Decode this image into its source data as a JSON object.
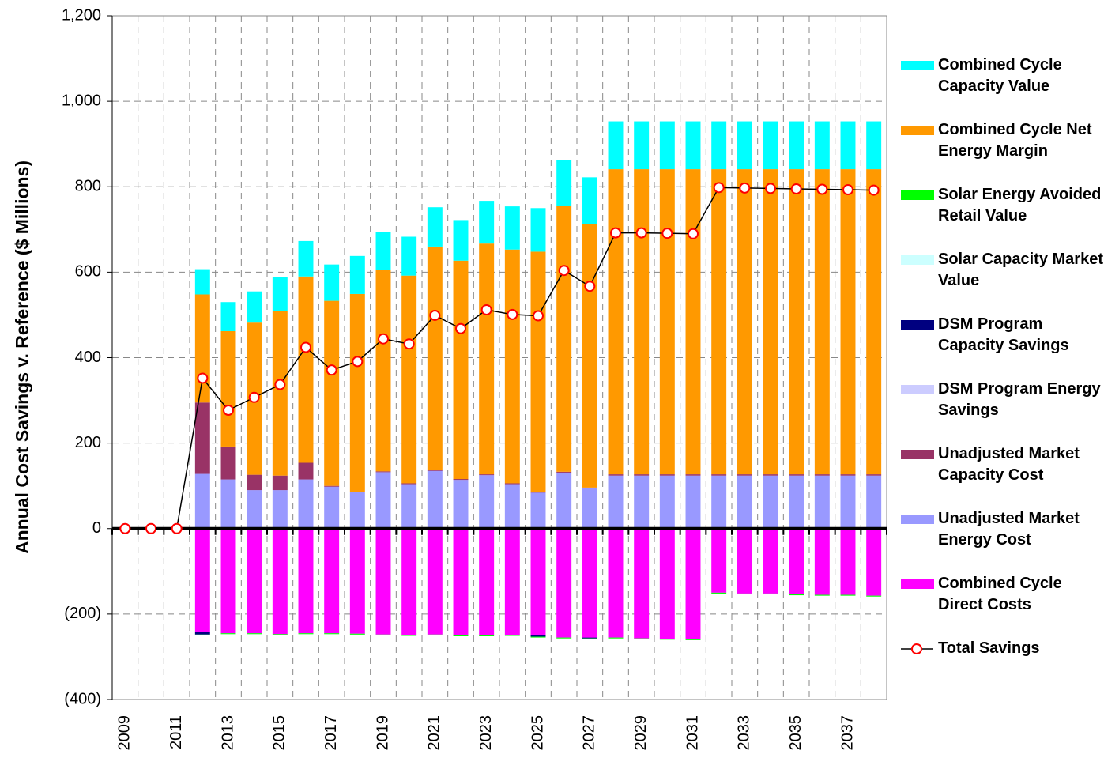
{
  "chart_data": {
    "type": "bar",
    "y_label": "Annual Cost Savings v. Reference ($ Millions)",
    "categories": [
      "2009",
      null,
      "2011",
      null,
      "2013",
      null,
      "2015",
      null,
      "2017",
      null,
      "2019",
      null,
      "2021",
      null,
      "2023",
      null,
      "2025",
      null,
      "2027",
      null,
      "2029",
      null,
      "2031",
      null,
      "2033",
      null,
      "2035",
      null,
      "2037",
      null
    ],
    "ylim": [
      -400,
      1200
    ],
    "yticks": [
      {
        "value": -400,
        "label": "(400)"
      },
      {
        "value": -200,
        "label": "(200)"
      },
      0,
      200,
      400,
      600,
      800,
      {
        "value": 1000,
        "label": "1,000"
      },
      {
        "value": 1200,
        "label": "1,200"
      }
    ],
    "grid": true,
    "legend": "right",
    "series": [
      {
        "name": "Combined Cycle Capacity Value",
        "color": "#00ffff",
        "values": [
          0,
          0,
          0,
          59,
          68,
          73,
          78,
          83,
          85,
          89,
          90,
          91,
          92,
          95,
          100,
          101,
          102,
          106,
          110,
          112,
          112,
          112,
          112,
          112,
          112,
          112,
          112,
          112,
          112,
          112
        ]
      },
      {
        "name": "Combined Cycle Net Energy Margin",
        "color": "#ff9900",
        "values": [
          0,
          0,
          0,
          253,
          270,
          356,
          386,
          436,
          433,
          463,
          471,
          486,
          523,
          511,
          540,
          547,
          562,
          623,
          616,
          714,
          714,
          714,
          714,
          714,
          714,
          714,
          714,
          714,
          714,
          714
        ]
      },
      {
        "name": "Solar Energy Avoided Retail Value",
        "color": "#00ff00",
        "values": [
          0,
          0,
          0,
          -2,
          -2,
          -2,
          -2,
          -2,
          -2,
          -2,
          -2,
          -2,
          -2,
          -2,
          -2,
          -2,
          -2,
          -2,
          -2,
          -2,
          -2,
          -2,
          -2,
          -2,
          -2,
          -2,
          -2,
          -2,
          -2,
          -2
        ]
      },
      {
        "name": "Solar Capacity Market Value",
        "color": "#ccffff",
        "values": [
          0,
          0,
          0,
          0,
          0,
          0,
          0,
          0,
          0,
          0,
          0,
          0,
          0,
          0,
          0,
          0,
          0,
          0,
          0,
          0,
          0,
          0,
          0,
          0,
          0,
          0,
          0,
          0,
          0,
          0
        ]
      },
      {
        "name": "DSM Program Capacity Savings",
        "color": "#000080",
        "values": [
          0,
          0,
          0,
          -6,
          0,
          0,
          0,
          0,
          0,
          0,
          0,
          0,
          0,
          0,
          0,
          0,
          -3,
          0,
          -2,
          0,
          0,
          0,
          0,
          0,
          0,
          0,
          0,
          0,
          0,
          0
        ]
      },
      {
        "name": "DSM Program Energy Savings",
        "color": "#ccccff",
        "values": [
          0,
          0,
          0,
          0,
          0,
          0,
          0,
          0,
          0,
          0,
          0,
          0,
          0,
          0,
          0,
          0,
          0,
          0,
          0,
          0,
          0,
          0,
          0,
          0,
          0,
          0,
          0,
          0,
          0,
          0
        ]
      },
      {
        "name": "Unadjusted Market Capacity Cost",
        "color": "#993366",
        "values": [
          0,
          0,
          0,
          167,
          77,
          36,
          34,
          39,
          2,
          1,
          2,
          2,
          2,
          2,
          2,
          2,
          2,
          2,
          1,
          3,
          3,
          3,
          3,
          3,
          3,
          3,
          3,
          3,
          3,
          3
        ]
      },
      {
        "name": "Unadjusted Market Energy Cost",
        "color": "#9999ff",
        "values": [
          0,
          0,
          0,
          128,
          115,
          90,
          90,
          115,
          98,
          85,
          132,
          104,
          135,
          114,
          125,
          104,
          84,
          131,
          95,
          124,
          124,
          124,
          124,
          124,
          124,
          124,
          124,
          124,
          124,
          124
        ]
      },
      {
        "name": "Combined Cycle Direct Costs",
        "color": "#ff00ff",
        "values": [
          0,
          0,
          0,
          -242,
          -245,
          -245,
          -247,
          -245,
          -245,
          -246,
          -248,
          -249,
          -248,
          -250,
          -250,
          -249,
          -250,
          -255,
          -255,
          -255,
          -257,
          -258,
          -259,
          -150,
          -152,
          -152,
          -154,
          -155,
          -155,
          -157
        ]
      },
      {
        "name": "Total Savings",
        "type": "line",
        "color": "#000000",
        "marker_color": "#ff0000",
        "values": [
          0,
          0,
          0,
          352,
          277,
          307,
          337,
          424,
          371,
          391,
          444,
          432,
          499,
          468,
          512,
          501,
          498,
          604,
          567,
          692,
          692,
          691,
          690,
          798,
          797,
          796,
          795,
          794,
          793,
          792
        ]
      }
    ]
  }
}
